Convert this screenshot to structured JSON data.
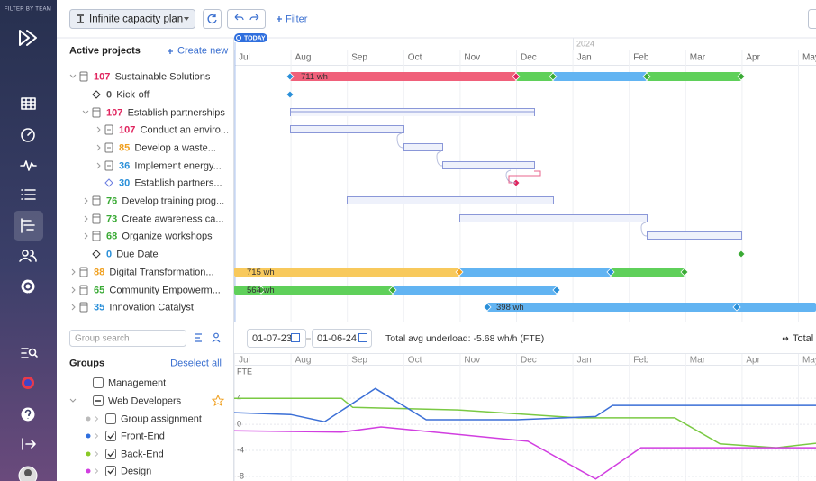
{
  "sidebar": {
    "filter_label": "FILTER BY TEAM"
  },
  "toolbar": {
    "plan": "Infinite capacity plan",
    "filter": "Filter"
  },
  "projects": {
    "title": "Active projects",
    "create": "Create new",
    "rows": [
      {
        "count": 107,
        "name": "Sustainable Solutions"
      },
      {
        "count": 0,
        "name": "Kick-off"
      },
      {
        "count": 107,
        "name": "Establish partnerships"
      },
      {
        "count": 107,
        "name": "Conduct an enviro..."
      },
      {
        "count": 85,
        "name": "Develop a waste..."
      },
      {
        "count": 36,
        "name": "Implement energy..."
      },
      {
        "count": 30,
        "name": "Establish partners..."
      },
      {
        "count": 76,
        "name": "Develop training prog..."
      },
      {
        "count": 73,
        "name": "Create awareness ca..."
      },
      {
        "count": 68,
        "name": "Organize workshops"
      },
      {
        "count": 0,
        "name": "Due Date"
      },
      {
        "count": 88,
        "name": "Digital Transformation..."
      },
      {
        "count": 65,
        "name": "Community Empowerm..."
      },
      {
        "count": 35,
        "name": "Innovation Catalyst"
      }
    ]
  },
  "timeline": {
    "today": "TODAY",
    "year": "2024",
    "months": [
      "Jul",
      "Aug",
      "Sep",
      "Oct",
      "Nov",
      "Dec",
      "Jan",
      "Feb",
      "Mar",
      "Apr",
      "May"
    ],
    "bar_labels": [
      "711 wh",
      "715 wh",
      "564 wh",
      "398 wh"
    ]
  },
  "groups": {
    "search_placeholder": "Group search",
    "title": "Groups",
    "deselect": "Deselect all",
    "items": [
      "Management",
      "Web Developers",
      "Group assignment",
      "Front-End",
      "Back-End",
      "Design"
    ]
  },
  "workload": {
    "start": "01-07-23",
    "end": "01-06-24",
    "summary": "Total avg underload: -5.68 wh/h (FTE)",
    "total": "Total"
  },
  "chart_data": {
    "type": "line",
    "ylabel": "FTE",
    "xlim": [
      0,
      10.3
    ],
    "ylim": [
      -8.7,
      9
    ],
    "yticks": [
      4,
      0,
      -4,
      -8
    ],
    "grid": true,
    "series": [
      {
        "color": "#7ac943",
        "x": [
          0,
          1.9,
          2.1,
          4.0,
          6.1,
          7.8,
          8.6,
          9.6,
          10.3
        ],
        "values": [
          4,
          4,
          2.6,
          2.2,
          1,
          1,
          -3,
          -3.6,
          -2.9
        ]
      },
      {
        "color": "#3b6fd6",
        "x": [
          0,
          1.0,
          1.6,
          2.5,
          3.4,
          5.0,
          6.4,
          6.7,
          10.3
        ],
        "values": [
          1.8,
          1.5,
          0.4,
          5.5,
          0.7,
          0.7,
          1.2,
          2.9,
          2.9
        ]
      },
      {
        "color": "#d13ee0",
        "x": [
          0,
          1.9,
          2.6,
          5.2,
          6.4,
          7.2,
          10.3
        ],
        "values": [
          -1,
          -1.2,
          -0.4,
          -2.6,
          -8.4,
          -3.6,
          -3.6
        ]
      }
    ]
  }
}
